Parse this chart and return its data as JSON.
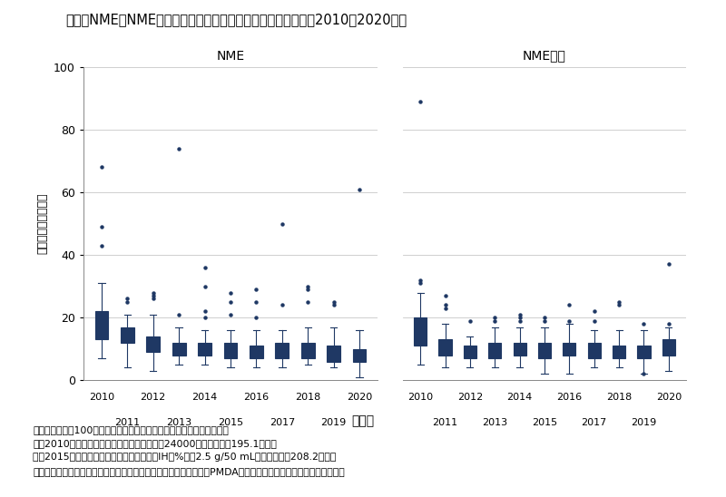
{
  "title": "図３　NMEとNME以外の審査期間（月数）の推移（承認年毎；2010〜2020年）",
  "ylabel": "申請～承認（月数）",
  "xlabel": "承認年",
  "ylim": [
    0,
    100
  ],
  "yticks": [
    0,
    20,
    40,
    60,
    80,
    100
  ],
  "panel_titles": [
    "NME",
    "NME以外"
  ],
  "years": [
    2010,
    2011,
    2012,
    2013,
    2014,
    2015,
    2016,
    2017,
    2018,
    2019,
    2020
  ],
  "box_facecolor": "#8da8be",
  "box_edge_color": "#1f3864",
  "nme_boxes": [
    {
      "year": 2010,
      "q1": 13,
      "median": 19,
      "q3": 22,
      "whislo": 7,
      "whishi": 31,
      "fliers": [
        43,
        49,
        68
      ]
    },
    {
      "year": 2011,
      "q1": 12,
      "median": 14,
      "q3": 17,
      "whislo": 4,
      "whishi": 21,
      "fliers": [
        25,
        26
      ]
    },
    {
      "year": 2012,
      "q1": 9,
      "median": 11,
      "q3": 14,
      "whislo": 3,
      "whishi": 21,
      "fliers": [
        26,
        27,
        28
      ]
    },
    {
      "year": 2013,
      "q1": 8,
      "median": 10,
      "q3": 12,
      "whislo": 5,
      "whishi": 17,
      "fliers": [
        21,
        74
      ]
    },
    {
      "year": 2014,
      "q1": 8,
      "median": 10,
      "q3": 12,
      "whislo": 5,
      "whishi": 16,
      "fliers": [
        20,
        22,
        30,
        36
      ]
    },
    {
      "year": 2015,
      "q1": 7,
      "median": 9,
      "q3": 12,
      "whislo": 4,
      "whishi": 16,
      "fliers": [
        21,
        25,
        28
      ]
    },
    {
      "year": 2016,
      "q1": 7,
      "median": 9,
      "q3": 11,
      "whislo": 4,
      "whishi": 16,
      "fliers": [
        20,
        25,
        29
      ]
    },
    {
      "year": 2017,
      "q1": 7,
      "median": 9,
      "q3": 12,
      "whislo": 4,
      "whishi": 16,
      "fliers": [
        24,
        50
      ]
    },
    {
      "year": 2018,
      "q1": 7,
      "median": 9,
      "q3": 12,
      "whislo": 5,
      "whishi": 17,
      "fliers": [
        25,
        29,
        30
      ]
    },
    {
      "year": 2019,
      "q1": 6,
      "median": 8,
      "q3": 11,
      "whislo": 4,
      "whishi": 17,
      "fliers": [
        24,
        25
      ]
    },
    {
      "year": 2020,
      "q1": 6,
      "median": 8,
      "q3": 10,
      "whislo": 1,
      "whishi": 16,
      "fliers": [
        61
      ]
    }
  ],
  "nonNME_boxes": [
    {
      "year": 2010,
      "q1": 11,
      "median": 15,
      "q3": 20,
      "whislo": 5,
      "whishi": 28,
      "fliers": [
        31,
        32,
        89
      ]
    },
    {
      "year": 2011,
      "q1": 8,
      "median": 10,
      "q3": 13,
      "whislo": 4,
      "whishi": 18,
      "fliers": [
        23,
        24,
        27
      ]
    },
    {
      "year": 2012,
      "q1": 7,
      "median": 9,
      "q3": 11,
      "whislo": 4,
      "whishi": 14,
      "fliers": [
        19
      ]
    },
    {
      "year": 2013,
      "q1": 7,
      "median": 9,
      "q3": 12,
      "whislo": 4,
      "whishi": 17,
      "fliers": [
        19,
        20
      ]
    },
    {
      "year": 2014,
      "q1": 8,
      "median": 10,
      "q3": 12,
      "whislo": 4,
      "whishi": 17,
      "fliers": [
        19,
        20,
        21
      ]
    },
    {
      "year": 2015,
      "q1": 7,
      "median": 9,
      "q3": 12,
      "whislo": 2,
      "whishi": 17,
      "fliers": [
        19,
        20
      ]
    },
    {
      "year": 2016,
      "q1": 8,
      "median": 10,
      "q3": 12,
      "whislo": 2,
      "whishi": 18,
      "fliers": [
        19,
        24
      ]
    },
    {
      "year": 2017,
      "q1": 7,
      "median": 9,
      "q3": 12,
      "whislo": 4,
      "whishi": 16,
      "fliers": [
        19,
        22
      ]
    },
    {
      "year": 2018,
      "q1": 7,
      "median": 9,
      "q3": 11,
      "whislo": 4,
      "whishi": 16,
      "fliers": [
        24,
        25
      ]
    },
    {
      "year": 2019,
      "q1": 7,
      "median": 9,
      "q3": 11,
      "whislo": 2,
      "whishi": 16,
      "fliers": [
        2,
        18
      ]
    },
    {
      "year": 2020,
      "q1": 8,
      "median": 10,
      "q3": 13,
      "whislo": 3,
      "whishi": 17,
      "fliers": [
        18,
        37
      ]
    }
  ],
  "footnote_lines": [
    "注：審査期間が100ヶ月を超える以下２品目は、グラフから除外した。",
    "　　2010年承認の「エポジン皮下注シリンジ24000」（審査期間195.1ヶ月）",
    "　　2015年承認の「献血ヴェノグロブリンIH５%静注2.5 g/50 mL」（審査期間208.2ヶ月）",
    "出所：審査報告書、新医薬品の承認品目一覧、添付文書（いずれもPMDA）をもとに医薬産業政策研究所にて作成"
  ]
}
